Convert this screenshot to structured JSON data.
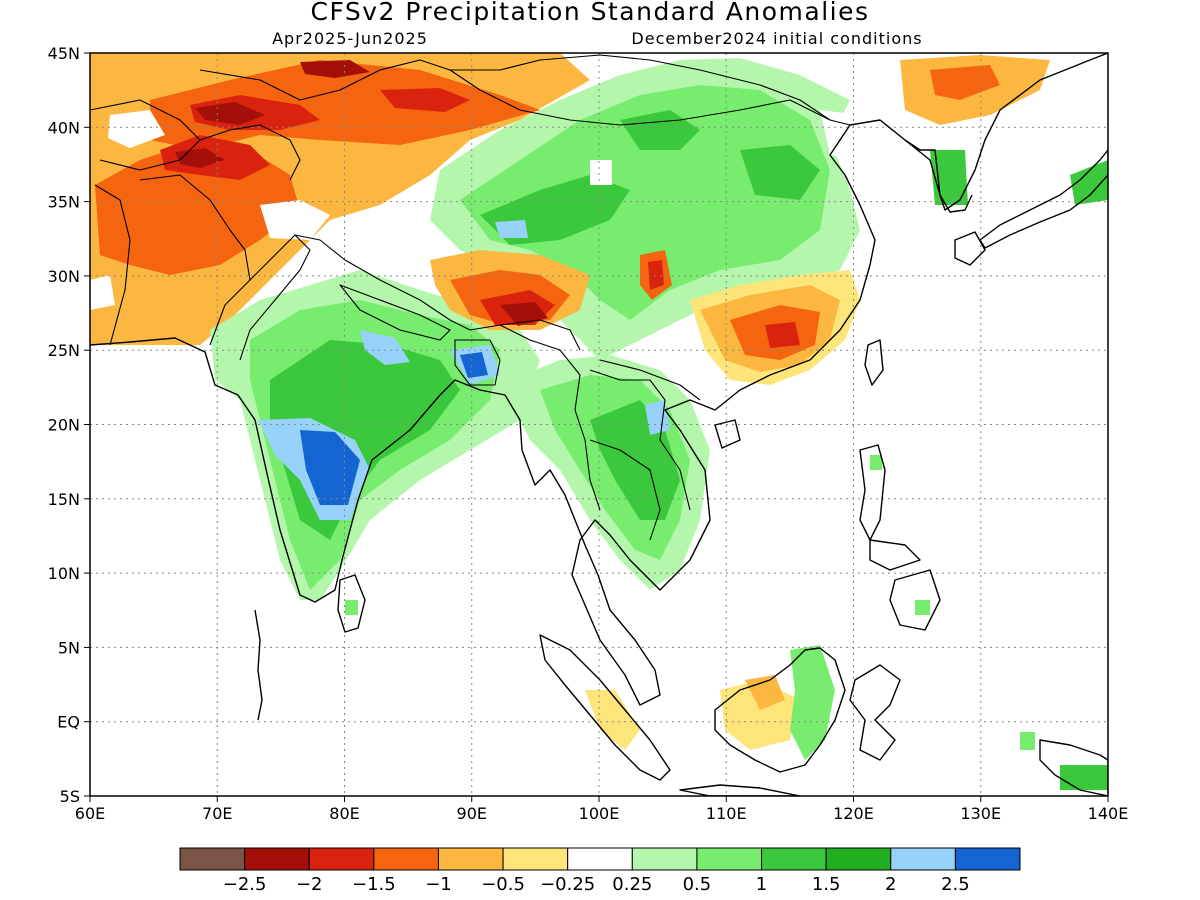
{
  "title": "CFSv2 Precipitation Standard Anomalies",
  "period": "Apr2025-Jun2025",
  "init": "December2024 initial conditions",
  "map": {
    "lon_min": 60,
    "lon_max": 140,
    "lat_min": -5,
    "lat_max": 45,
    "lon_ticks": [
      {
        "value": 60,
        "label": "60E"
      },
      {
        "value": 70,
        "label": "70E"
      },
      {
        "value": 80,
        "label": "80E"
      },
      {
        "value": 90,
        "label": "90E"
      },
      {
        "value": 100,
        "label": "100E"
      },
      {
        "value": 110,
        "label": "110E"
      },
      {
        "value": 120,
        "label": "120E"
      },
      {
        "value": 130,
        "label": "130E"
      },
      {
        "value": 140,
        "label": "140E"
      }
    ],
    "lat_ticks": [
      {
        "value": 45,
        "label": "45N"
      },
      {
        "value": 40,
        "label": "40N"
      },
      {
        "value": 35,
        "label": "35N"
      },
      {
        "value": 30,
        "label": "30N"
      },
      {
        "value": 25,
        "label": "25N"
      },
      {
        "value": 20,
        "label": "20N"
      },
      {
        "value": 15,
        "label": "15N"
      },
      {
        "value": 10,
        "label": "10N"
      },
      {
        "value": 5,
        "label": "5N"
      },
      {
        "value": 0,
        "label": "EQ"
      },
      {
        "value": -5,
        "label": "5S"
      }
    ]
  },
  "legend": {
    "colors": [
      "#7a5446",
      "#a50f0a",
      "#d9230f",
      "#f5650f",
      "#fbb740",
      "#fde57a",
      "#ffffff",
      "#b4f7ac",
      "#78ec6e",
      "#3cc83c",
      "#20ae20",
      "#96d2fa",
      "#1464d2"
    ],
    "labels": [
      "−2.5",
      "−2",
      "−1.5",
      "−1",
      "−0.5",
      "−0.25",
      "0.25",
      "0.5",
      "1",
      "1.5",
      "2",
      "2.5"
    ]
  },
  "colors": {
    "dry_strong": "#a50f0a",
    "dry": "#d9230f",
    "dry_mod": "#f5650f",
    "dry_light": "#fbb740",
    "dry_weak": "#fde57a",
    "wet_weak": "#b4f7ac",
    "wet_light": "#78ec6e",
    "wet_mod": "#3cc83c",
    "wet": "#20ae20",
    "wet_strong": "#96d2fa",
    "wet_extreme": "#1464d2"
  }
}
